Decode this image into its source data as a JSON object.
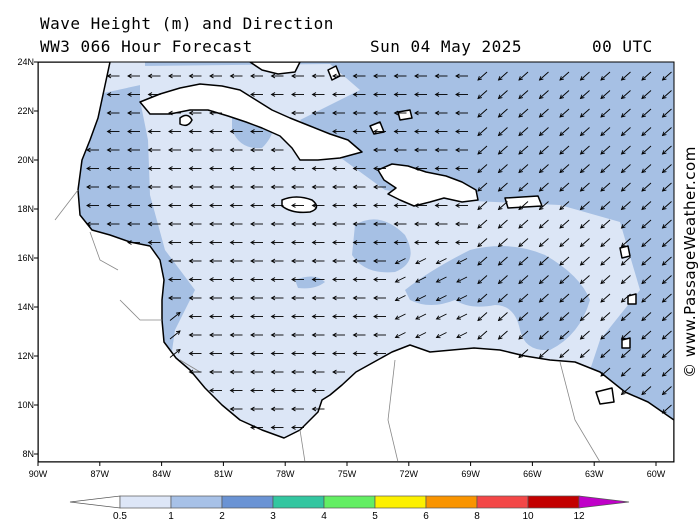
{
  "header": {
    "title": "Wave Height (m) and Direction",
    "model_line": "WW3 066 Hour Forecast",
    "date": "Sun 04 May 2025",
    "time": "00 UTC"
  },
  "copyright": "© www.PassageWeather.com",
  "axes": {
    "lat_labels": [
      "24N",
      "22N",
      "20N",
      "18N",
      "16N",
      "14N",
      "12N",
      "10N",
      "8N"
    ],
    "lon_labels": [
      "90W",
      "87W",
      "84W",
      "81W",
      "78W",
      "75W",
      "72W",
      "69W",
      "66W",
      "63W",
      "60W"
    ]
  },
  "legend": {
    "labels": [
      "0.5",
      "1",
      "2",
      "3",
      "4",
      "5",
      "6",
      "8",
      "10",
      "12"
    ],
    "colors": [
      "#ffffff",
      "#dde6f7",
      "#a7c1e7",
      "#6a93d4",
      "#33c6a0",
      "#63ee63",
      "#fcf000",
      "#f99400",
      "#f34747",
      "#c30000",
      "#c000c8"
    ]
  },
  "map_colors": {
    "sea_low": "#dce6f6",
    "sea_mid": "#a6c0e4",
    "land": "#ffffff",
    "arrow": "#000000"
  },
  "wave_direction": "from east, west-southwest propagating"
}
